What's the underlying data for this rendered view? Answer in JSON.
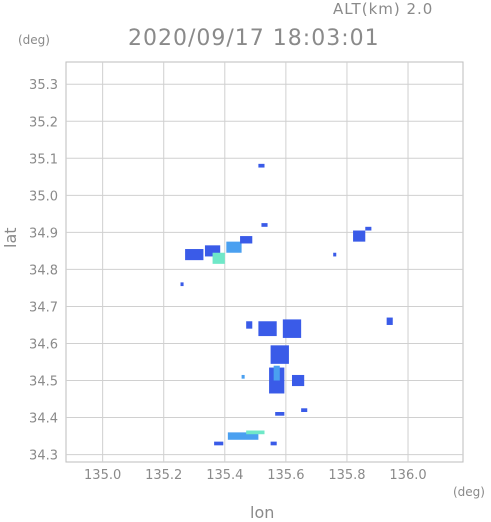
{
  "header": {
    "altitude_label": "ALT(km)  2.0",
    "timestamp": "2020/09/17 18:03:01"
  },
  "chart_data": {
    "type": "heatmap",
    "xlabel": "lon",
    "ylabel": "lat",
    "x_unit": "(deg)",
    "y_unit": "(deg)",
    "xlim": [
      134.88,
      136.18
    ],
    "ylim": [
      34.28,
      35.36
    ],
    "x_ticks": [
      "135.0",
      "135.2",
      "135.4",
      "135.6",
      "135.8",
      "136.0"
    ],
    "y_ticks": [
      "34.3",
      "34.4",
      "34.5",
      "34.6",
      "34.7",
      "34.8",
      "34.9",
      "35.0",
      "35.1",
      "35.2",
      "35.3"
    ],
    "grid": true,
    "colors": {
      "low": "#3a5be8",
      "mid": "#4aa0f0",
      "high": "#6fe8c8",
      "grid": "#d0d0d0",
      "text": "#8a8a8a"
    },
    "echo_cells": [
      {
        "lon": 135.3,
        "lat": 34.84,
        "w": 0.06,
        "h": 0.03,
        "intensity": "low"
      },
      {
        "lon": 135.36,
        "lat": 34.85,
        "w": 0.05,
        "h": 0.03,
        "intensity": "low"
      },
      {
        "lon": 135.38,
        "lat": 34.83,
        "w": 0.04,
        "h": 0.03,
        "intensity": "high"
      },
      {
        "lon": 135.43,
        "lat": 34.86,
        "w": 0.05,
        "h": 0.03,
        "intensity": "mid"
      },
      {
        "lon": 135.47,
        "lat": 34.88,
        "w": 0.04,
        "h": 0.02,
        "intensity": "low"
      },
      {
        "lon": 135.26,
        "lat": 34.76,
        "w": 0.01,
        "h": 0.01,
        "intensity": "low"
      },
      {
        "lon": 135.52,
        "lat": 35.08,
        "w": 0.02,
        "h": 0.01,
        "intensity": "low"
      },
      {
        "lon": 135.53,
        "lat": 34.92,
        "w": 0.02,
        "h": 0.01,
        "intensity": "low"
      },
      {
        "lon": 135.84,
        "lat": 34.89,
        "w": 0.04,
        "h": 0.03,
        "intensity": "low"
      },
      {
        "lon": 135.87,
        "lat": 34.91,
        "w": 0.02,
        "h": 0.01,
        "intensity": "low"
      },
      {
        "lon": 135.76,
        "lat": 34.84,
        "w": 0.01,
        "h": 0.01,
        "intensity": "low"
      },
      {
        "lon": 135.94,
        "lat": 34.66,
        "w": 0.02,
        "h": 0.02,
        "intensity": "low"
      },
      {
        "lon": 135.54,
        "lat": 34.64,
        "w": 0.06,
        "h": 0.04,
        "intensity": "low"
      },
      {
        "lon": 135.62,
        "lat": 34.64,
        "w": 0.06,
        "h": 0.05,
        "intensity": "low"
      },
      {
        "lon": 135.58,
        "lat": 34.57,
        "w": 0.06,
        "h": 0.05,
        "intensity": "low"
      },
      {
        "lon": 135.57,
        "lat": 34.5,
        "w": 0.05,
        "h": 0.07,
        "intensity": "low"
      },
      {
        "lon": 135.57,
        "lat": 34.52,
        "w": 0.02,
        "h": 0.04,
        "intensity": "mid"
      },
      {
        "lon": 135.64,
        "lat": 34.5,
        "w": 0.04,
        "h": 0.03,
        "intensity": "low"
      },
      {
        "lon": 135.48,
        "lat": 34.65,
        "w": 0.02,
        "h": 0.02,
        "intensity": "low"
      },
      {
        "lon": 135.46,
        "lat": 34.51,
        "w": 0.01,
        "h": 0.01,
        "intensity": "mid"
      },
      {
        "lon": 135.58,
        "lat": 34.41,
        "w": 0.03,
        "h": 0.01,
        "intensity": "low"
      },
      {
        "lon": 135.66,
        "lat": 34.42,
        "w": 0.02,
        "h": 0.01,
        "intensity": "low"
      },
      {
        "lon": 135.46,
        "lat": 34.35,
        "w": 0.1,
        "h": 0.02,
        "intensity": "mid"
      },
      {
        "lon": 135.5,
        "lat": 34.36,
        "w": 0.06,
        "h": 0.01,
        "intensity": "high"
      },
      {
        "lon": 135.38,
        "lat": 34.33,
        "w": 0.03,
        "h": 0.01,
        "intensity": "low"
      },
      {
        "lon": 135.56,
        "lat": 34.33,
        "w": 0.02,
        "h": 0.01,
        "intensity": "low"
      }
    ]
  }
}
